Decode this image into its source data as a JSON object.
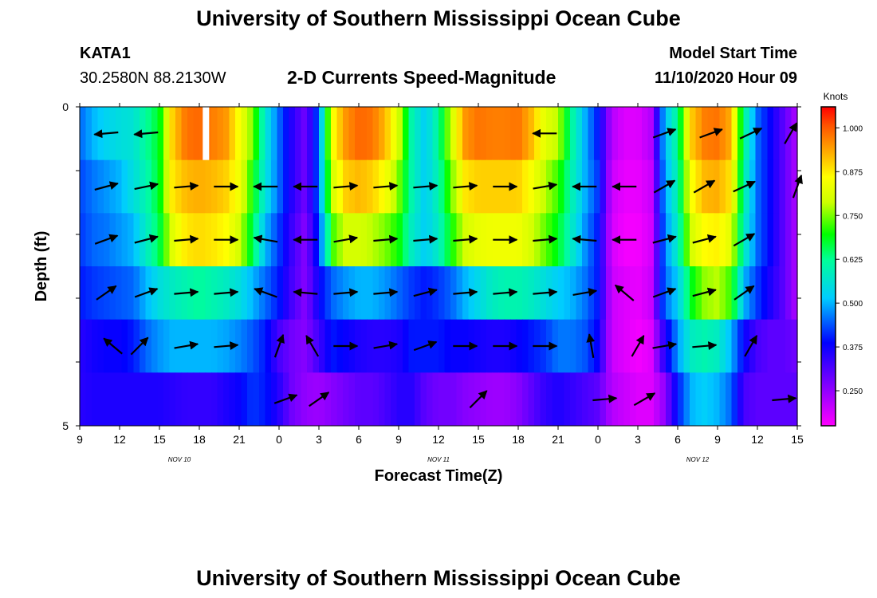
{
  "page": {
    "title_top": "University of Southern Mississippi Ocean Cube",
    "title_bottom": "University of Southern Mississippi Ocean Cube",
    "station_id": "KATA1",
    "station_coords": "30.2580N 88.2130W",
    "model_start_label": "Model Start Time",
    "model_start_value": "11/10/2020 Hour 09"
  },
  "chart_data": {
    "type": "heatmap",
    "title": "2-D Currents Speed-Magnitude",
    "xlabel": "Forecast Time(Z)",
    "ylabel": "Depth (ft)",
    "x_range_hours": [
      0,
      54
    ],
    "y_range": [
      0,
      5
    ],
    "y_tick_labels": [
      {
        "v": 0,
        "label": "0"
      },
      {
        "v": 5,
        "label": "5"
      }
    ],
    "x_tick_labels": [
      {
        "h": 0,
        "label": "9"
      },
      {
        "h": 3,
        "label": "12"
      },
      {
        "h": 6,
        "label": "15"
      },
      {
        "h": 9,
        "label": "18"
      },
      {
        "h": 12,
        "label": "21"
      },
      {
        "h": 15,
        "label": "0"
      },
      {
        "h": 18,
        "label": "3"
      },
      {
        "h": 21,
        "label": "6"
      },
      {
        "h": 24,
        "label": "9"
      },
      {
        "h": 27,
        "label": "12"
      },
      {
        "h": 30,
        "label": "15"
      },
      {
        "h": 33,
        "label": "18"
      },
      {
        "h": 36,
        "label": "21"
      },
      {
        "h": 39,
        "label": "0"
      },
      {
        "h": 42,
        "label": "3"
      },
      {
        "h": 45,
        "label": "6"
      },
      {
        "h": 48,
        "label": "9"
      },
      {
        "h": 51,
        "label": "12"
      },
      {
        "h": 54,
        "label": "15"
      }
    ],
    "date_labels": [
      {
        "h": 7.5,
        "label": "NOV 10"
      },
      {
        "h": 27,
        "label": "NOV 11"
      },
      {
        "h": 46.5,
        "label": "NOV 12"
      }
    ],
    "colorbar": {
      "title": "Knots",
      "min": 0.15,
      "max": 1.06,
      "ticks": [
        "1.000",
        "0.875",
        "0.750",
        "0.625",
        "0.500",
        "0.375",
        "0.250"
      ],
      "tick_values": [
        1.0,
        0.875,
        0.75,
        0.625,
        0.5,
        0.375,
        0.25
      ]
    },
    "speed_keyframes": {
      "hours": [
        0,
        1,
        2,
        3,
        4,
        5,
        6,
        7,
        8,
        9,
        10,
        11,
        12,
        13,
        14,
        15,
        16,
        17,
        18,
        19,
        20,
        21,
        22,
        23,
        24,
        25,
        26,
        27,
        28,
        29,
        30,
        31,
        32,
        33,
        34,
        35,
        36,
        37,
        38,
        39,
        40,
        41,
        42,
        43,
        44,
        45,
        46,
        47,
        48,
        49,
        50,
        51,
        52,
        53,
        54
      ],
      "layers": [
        [
          0.45,
          0.5,
          0.53,
          0.55,
          0.56,
          0.62,
          0.68,
          0.9,
          0.98,
          0.99,
          0.97,
          0.95,
          0.85,
          0.75,
          0.56,
          0.45,
          0.35,
          0.28,
          0.45,
          0.85,
          0.95,
          0.99,
          0.98,
          0.92,
          0.8,
          0.6,
          0.52,
          0.62,
          0.8,
          0.95,
          0.98,
          0.97,
          0.97,
          0.98,
          0.92,
          0.82,
          0.78,
          0.62,
          0.5,
          0.4,
          0.22,
          0.18,
          0.18,
          0.22,
          0.5,
          0.62,
          0.9,
          0.97,
          0.98,
          0.93,
          0.62,
          0.45,
          0.38,
          0.3,
          0.22
        ],
        [
          0.43,
          0.46,
          0.48,
          0.5,
          0.55,
          0.6,
          0.68,
          0.88,
          0.92,
          0.93,
          0.92,
          0.9,
          0.84,
          0.7,
          0.55,
          0.45,
          0.35,
          0.28,
          0.45,
          0.8,
          0.9,
          0.92,
          0.9,
          0.85,
          0.75,
          0.6,
          0.52,
          0.6,
          0.75,
          0.88,
          0.9,
          0.9,
          0.9,
          0.9,
          0.85,
          0.78,
          0.72,
          0.6,
          0.5,
          0.42,
          0.2,
          0.17,
          0.17,
          0.2,
          0.48,
          0.6,
          0.85,
          0.92,
          0.93,
          0.88,
          0.6,
          0.45,
          0.38,
          0.3,
          0.22
        ],
        [
          0.42,
          0.45,
          0.46,
          0.48,
          0.5,
          0.58,
          0.66,
          0.82,
          0.88,
          0.89,
          0.88,
          0.86,
          0.8,
          0.66,
          0.5,
          0.42,
          0.33,
          0.26,
          0.42,
          0.72,
          0.8,
          0.8,
          0.78,
          0.75,
          0.7,
          0.58,
          0.52,
          0.58,
          0.7,
          0.8,
          0.83,
          0.84,
          0.84,
          0.84,
          0.8,
          0.74,
          0.68,
          0.58,
          0.48,
          0.4,
          0.19,
          0.16,
          0.16,
          0.19,
          0.46,
          0.58,
          0.8,
          0.86,
          0.87,
          0.82,
          0.58,
          0.45,
          0.38,
          0.3,
          0.22
        ],
        [
          0.4,
          0.42,
          0.43,
          0.44,
          0.45,
          0.5,
          0.55,
          0.58,
          0.6,
          0.62,
          0.6,
          0.58,
          0.55,
          0.5,
          0.45,
          0.4,
          0.32,
          0.26,
          0.38,
          0.45,
          0.48,
          0.5,
          0.5,
          0.48,
          0.45,
          0.42,
          0.4,
          0.42,
          0.45,
          0.5,
          0.54,
          0.58,
          0.6,
          0.6,
          0.58,
          0.55,
          0.52,
          0.5,
          0.46,
          0.4,
          0.2,
          0.18,
          0.17,
          0.2,
          0.45,
          0.52,
          0.68,
          0.76,
          0.78,
          0.72,
          0.5,
          0.42,
          0.36,
          0.3,
          0.22
        ],
        [
          0.35,
          0.37,
          0.38,
          0.38,
          0.4,
          0.45,
          0.48,
          0.5,
          0.5,
          0.5,
          0.5,
          0.49,
          0.47,
          0.44,
          0.4,
          0.32,
          0.28,
          0.26,
          0.33,
          0.4,
          0.38,
          0.36,
          0.35,
          0.35,
          0.36,
          0.4,
          0.4,
          0.4,
          0.38,
          0.38,
          0.37,
          0.36,
          0.36,
          0.38,
          0.4,
          0.42,
          0.46,
          0.46,
          0.44,
          0.38,
          0.2,
          0.18,
          0.16,
          0.18,
          0.35,
          0.48,
          0.58,
          0.6,
          0.58,
          0.5,
          0.38,
          0.32,
          0.3,
          0.3,
          0.28
        ],
        [
          0.35,
          0.36,
          0.36,
          0.36,
          0.36,
          0.36,
          0.36,
          0.35,
          0.34,
          0.34,
          0.34,
          0.36,
          0.38,
          0.42,
          0.4,
          0.35,
          0.28,
          0.25,
          0.24,
          0.26,
          0.28,
          0.3,
          0.3,
          0.32,
          0.35,
          0.35,
          0.3,
          0.28,
          0.28,
          0.26,
          0.25,
          0.24,
          0.24,
          0.26,
          0.3,
          0.34,
          0.36,
          0.34,
          0.32,
          0.3,
          0.22,
          0.2,
          0.18,
          0.18,
          0.25,
          0.4,
          0.5,
          0.52,
          0.5,
          0.45,
          0.32,
          0.3,
          0.3,
          0.3,
          0.3
        ]
      ]
    },
    "white_marker": {
      "hour": 9.5,
      "layer": 0
    },
    "arrows": [
      {
        "layer": 0,
        "h": 2,
        "dir": 175
      },
      {
        "layer": 0,
        "h": 5,
        "dir": 175
      },
      {
        "layer": 0,
        "h": 35,
        "dir": 180
      },
      {
        "layer": 0,
        "h": 44,
        "dir": -20
      },
      {
        "layer": 0,
        "h": 47.5,
        "dir": -20
      },
      {
        "layer": 0,
        "h": 50.5,
        "dir": -25
      },
      {
        "layer": 0,
        "h": 53.5,
        "dir": -60
      },
      {
        "layer": 1,
        "h": 2,
        "dir": -15
      },
      {
        "layer": 1,
        "h": 5,
        "dir": -12
      },
      {
        "layer": 1,
        "h": 8,
        "dir": -5
      },
      {
        "layer": 1,
        "h": 11,
        "dir": 0
      },
      {
        "layer": 1,
        "h": 14,
        "dir": -180
      },
      {
        "layer": 1,
        "h": 17,
        "dir": 180
      },
      {
        "layer": 1,
        "h": 20,
        "dir": -5
      },
      {
        "layer": 1,
        "h": 23,
        "dir": -5
      },
      {
        "layer": 1,
        "h": 26,
        "dir": -5
      },
      {
        "layer": 1,
        "h": 29,
        "dir": -5
      },
      {
        "layer": 1,
        "h": 32,
        "dir": 0
      },
      {
        "layer": 1,
        "h": 35,
        "dir": -10
      },
      {
        "layer": 1,
        "h": 38,
        "dir": -180
      },
      {
        "layer": 1,
        "h": 41,
        "dir": 180
      },
      {
        "layer": 1,
        "h": 44,
        "dir": -30
      },
      {
        "layer": 1,
        "h": 47,
        "dir": -30
      },
      {
        "layer": 1,
        "h": 50,
        "dir": -25
      },
      {
        "layer": 1,
        "h": 54,
        "dir": -70
      },
      {
        "layer": 2,
        "h": 2,
        "dir": -20
      },
      {
        "layer": 2,
        "h": 5,
        "dir": -15
      },
      {
        "layer": 2,
        "h": 8,
        "dir": -5
      },
      {
        "layer": 2,
        "h": 11,
        "dir": 0
      },
      {
        "layer": 2,
        "h": 14,
        "dir": -170
      },
      {
        "layer": 2,
        "h": 17,
        "dir": 180
      },
      {
        "layer": 2,
        "h": 20,
        "dir": -10
      },
      {
        "layer": 2,
        "h": 23,
        "dir": -5
      },
      {
        "layer": 2,
        "h": 26,
        "dir": -5
      },
      {
        "layer": 2,
        "h": 29,
        "dir": -5
      },
      {
        "layer": 2,
        "h": 32,
        "dir": 0
      },
      {
        "layer": 2,
        "h": 35,
        "dir": -5
      },
      {
        "layer": 2,
        "h": 38,
        "dir": -175
      },
      {
        "layer": 2,
        "h": 41,
        "dir": 180
      },
      {
        "layer": 2,
        "h": 44,
        "dir": -15
      },
      {
        "layer": 2,
        "h": 47,
        "dir": -15
      },
      {
        "layer": 2,
        "h": 50,
        "dir": -30
      },
      {
        "layer": 3,
        "h": 2,
        "dir": -35
      },
      {
        "layer": 3,
        "h": 5,
        "dir": -20
      },
      {
        "layer": 3,
        "h": 8,
        "dir": -5
      },
      {
        "layer": 3,
        "h": 11,
        "dir": -5
      },
      {
        "layer": 3,
        "h": 14,
        "dir": -160
      },
      {
        "layer": 3,
        "h": 17,
        "dir": -175
      },
      {
        "layer": 3,
        "h": 20,
        "dir": -5
      },
      {
        "layer": 3,
        "h": 23,
        "dir": -5
      },
      {
        "layer": 3,
        "h": 26,
        "dir": -15
      },
      {
        "layer": 3,
        "h": 29,
        "dir": -5
      },
      {
        "layer": 3,
        "h": 32,
        "dir": -5
      },
      {
        "layer": 3,
        "h": 35,
        "dir": -5
      },
      {
        "layer": 3,
        "h": 38,
        "dir": -10
      },
      {
        "layer": 3,
        "h": 41,
        "dir": -140
      },
      {
        "layer": 3,
        "h": 44,
        "dir": -20
      },
      {
        "layer": 3,
        "h": 47,
        "dir": -15
      },
      {
        "layer": 3,
        "h": 50,
        "dir": -35
      },
      {
        "layer": 4,
        "h": 2.5,
        "dir": -140
      },
      {
        "layer": 4,
        "h": 4.5,
        "dir": -45
      },
      {
        "layer": 4,
        "h": 8,
        "dir": -10
      },
      {
        "layer": 4,
        "h": 11,
        "dir": -5
      },
      {
        "layer": 4,
        "h": 15,
        "dir": -70
      },
      {
        "layer": 4,
        "h": 17.5,
        "dir": -120
      },
      {
        "layer": 4,
        "h": 20,
        "dir": 0
      },
      {
        "layer": 4,
        "h": 23,
        "dir": -10
      },
      {
        "layer": 4,
        "h": 26,
        "dir": -20
      },
      {
        "layer": 4,
        "h": 29,
        "dir": 0
      },
      {
        "layer": 4,
        "h": 32,
        "dir": 0
      },
      {
        "layer": 4,
        "h": 35,
        "dir": 0
      },
      {
        "layer": 4,
        "h": 38.5,
        "dir": -100
      },
      {
        "layer": 4,
        "h": 42,
        "dir": -60
      },
      {
        "layer": 4,
        "h": 44,
        "dir": -10
      },
      {
        "layer": 4,
        "h": 47,
        "dir": -5
      },
      {
        "layer": 4,
        "h": 50.5,
        "dir": -60
      },
      {
        "layer": 5,
        "h": 15.5,
        "dir": -20
      },
      {
        "layer": 5,
        "h": 18,
        "dir": -35
      },
      {
        "layer": 5,
        "h": 30,
        "dir": -45
      },
      {
        "layer": 5,
        "h": 39.5,
        "dir": -5
      },
      {
        "layer": 5,
        "h": 42.5,
        "dir": -30
      },
      {
        "layer": 5,
        "h": 53,
        "dir": -5
      }
    ]
  }
}
